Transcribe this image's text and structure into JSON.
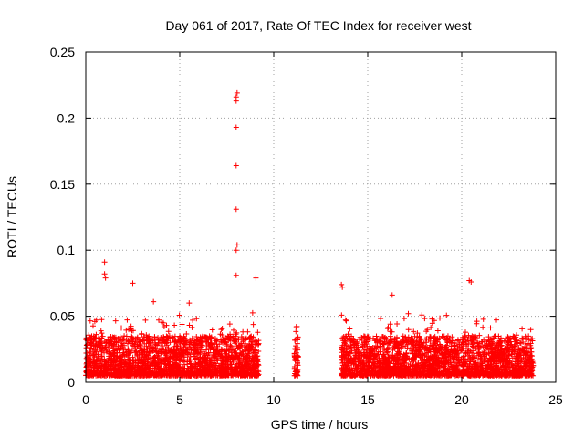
{
  "chart_data": {
    "type": "scatter",
    "title": "Day 061 of 2017, Rate Of TEC Index for receiver west",
    "xlabel": "GPS time / hours",
    "ylabel": "ROTI / TECUs",
    "xlim": [
      0,
      25
    ],
    "ylim": [
      0,
      0.25
    ],
    "x_ticks": [
      "0",
      "5",
      "10",
      "15",
      "20",
      "25"
    ],
    "y_ticks": [
      "0",
      "0.05",
      "0.1",
      "0.15",
      "0.2",
      "0.25"
    ],
    "grid": true,
    "marker": "+",
    "color": "#ff0000",
    "legend": "none",
    "data_coverage_hours": [
      [
        0,
        9.2
      ],
      [
        11.1,
        11.3
      ],
      [
        13.6,
        23.8
      ]
    ],
    "typical_range": [
      0.005,
      0.035
    ],
    "notable_points": [
      {
        "x": 8.05,
        "y": 0.219
      },
      {
        "x": 8.0,
        "y": 0.216
      },
      {
        "x": 8.0,
        "y": 0.213
      },
      {
        "x": 8.0,
        "y": 0.193
      },
      {
        "x": 8.0,
        "y": 0.164
      },
      {
        "x": 8.0,
        "y": 0.131
      },
      {
        "x": 8.05,
        "y": 0.104
      },
      {
        "x": 8.0,
        "y": 0.1
      },
      {
        "x": 8.0,
        "y": 0.081
      },
      {
        "x": 1.0,
        "y": 0.091
      },
      {
        "x": 1.0,
        "y": 0.082
      },
      {
        "x": 1.05,
        "y": 0.079
      },
      {
        "x": 2.5,
        "y": 0.075
      },
      {
        "x": 13.6,
        "y": 0.074
      },
      {
        "x": 13.65,
        "y": 0.072
      },
      {
        "x": 20.4,
        "y": 0.077
      },
      {
        "x": 20.5,
        "y": 0.076
      },
      {
        "x": 9.05,
        "y": 0.079
      },
      {
        "x": 16.3,
        "y": 0.066
      },
      {
        "x": 3.6,
        "y": 0.061
      },
      {
        "x": 5.5,
        "y": 0.06
      },
      {
        "x": 11.2,
        "y": 0.042
      }
    ]
  }
}
